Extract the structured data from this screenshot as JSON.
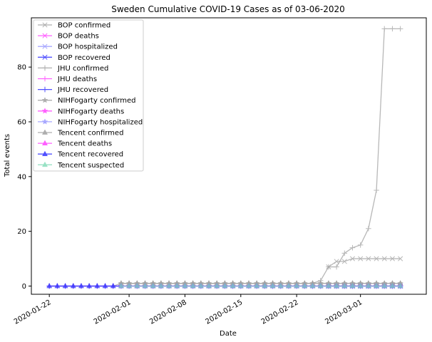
{
  "chart_data": {
    "type": "line",
    "title": "Sweden Cumulative COVID-19 Cases as of 03-06-2020",
    "xlabel": "Date",
    "ylabel": "Total events",
    "ylim": [
      -3,
      98
    ],
    "x_start": "2020-01-22",
    "num_days": 45,
    "x_tick_labels": [
      "2020-01-22",
      "2020-02-01",
      "2020-02-08",
      "2020-02-15",
      "2020-02-22",
      "2020-03-01"
    ],
    "x_tick_days": [
      0,
      10,
      17,
      24,
      31,
      39
    ],
    "y_ticks": [
      0,
      20,
      40,
      60,
      80
    ],
    "legend_position": "upper-left",
    "series": [
      {
        "name": "BOP confirmed",
        "color": "#a0a0a0",
        "marker": "x",
        "x_days": [
          35,
          36,
          37,
          38,
          39,
          40,
          41,
          42,
          43,
          44
        ],
        "values": [
          7,
          9,
          9,
          10,
          10,
          10,
          10,
          10,
          10,
          10
        ]
      },
      {
        "name": "BOP deaths",
        "color": "#ff44ff",
        "marker": "x",
        "x_days": [
          35,
          36,
          37,
          38,
          39,
          40,
          41,
          42,
          43,
          44
        ],
        "values": [
          0,
          0,
          0,
          0,
          0,
          0,
          0,
          0,
          0,
          0
        ]
      },
      {
        "name": "BOP hospitalized",
        "color": "#9999ff",
        "marker": "x",
        "x_days": [
          35,
          36,
          37,
          38,
          39,
          40,
          41,
          42,
          43,
          44
        ],
        "values": [
          0,
          0,
          0,
          0,
          0,
          0,
          0,
          0,
          0,
          0
        ]
      },
      {
        "name": "BOP recovered",
        "color": "#3333ff",
        "marker": "x",
        "x_days": [
          35,
          36,
          37,
          38,
          39,
          40,
          41,
          42,
          43,
          44
        ],
        "values": [
          0,
          0,
          0,
          0,
          0,
          0,
          0,
          0,
          0,
          0
        ]
      },
      {
        "name": "JHU confirmed",
        "color": "#a0a0a0",
        "marker": "+",
        "x_days": [
          0,
          1,
          2,
          3,
          4,
          5,
          6,
          7,
          8,
          9,
          10,
          11,
          12,
          13,
          14,
          15,
          16,
          17,
          18,
          19,
          20,
          21,
          22,
          23,
          24,
          25,
          26,
          27,
          28,
          29,
          30,
          31,
          32,
          33,
          34,
          35,
          36,
          37,
          38,
          39,
          40,
          41,
          42,
          43,
          44
        ],
        "values": [
          0,
          0,
          0,
          0,
          0,
          0,
          0,
          0,
          0,
          1,
          1,
          1,
          1,
          1,
          1,
          1,
          1,
          1,
          1,
          1,
          1,
          1,
          1,
          1,
          1,
          1,
          1,
          1,
          1,
          1,
          1,
          1,
          1,
          1,
          2,
          7,
          7,
          12,
          14,
          15,
          21,
          35,
          94,
          94,
          94
        ]
      },
      {
        "name": "JHU deaths",
        "color": "#ff44ff",
        "marker": "+",
        "x_days": [
          0,
          1,
          2,
          3,
          4,
          5,
          6,
          7,
          8,
          9,
          10,
          11,
          12,
          13,
          14,
          15,
          16,
          17,
          18,
          19,
          20,
          21,
          22,
          23,
          24,
          25,
          26,
          27,
          28,
          29,
          30,
          31,
          32,
          33,
          34,
          35,
          36,
          37,
          38,
          39,
          40,
          41,
          42,
          43,
          44
        ],
        "values": [
          0,
          0,
          0,
          0,
          0,
          0,
          0,
          0,
          0,
          0,
          0,
          0,
          0,
          0,
          0,
          0,
          0,
          0,
          0,
          0,
          0,
          0,
          0,
          0,
          0,
          0,
          0,
          0,
          0,
          0,
          0,
          0,
          0,
          0,
          0,
          0,
          0,
          0,
          0,
          0,
          0,
          0,
          0,
          0,
          0
        ]
      },
      {
        "name": "JHU recovered",
        "color": "#3333ff",
        "marker": "+",
        "x_days": [
          0,
          1,
          2,
          3,
          4,
          5,
          6,
          7,
          8,
          9,
          10,
          11,
          12,
          13,
          14,
          15,
          16,
          17,
          18,
          19,
          20,
          21,
          22,
          23,
          24,
          25,
          26,
          27,
          28,
          29,
          30,
          31,
          32,
          33,
          34,
          35,
          36,
          37,
          38,
          39,
          40,
          41,
          42,
          43,
          44
        ],
        "values": [
          0,
          0,
          0,
          0,
          0,
          0,
          0,
          0,
          0,
          0,
          0,
          0,
          0,
          0,
          0,
          0,
          0,
          0,
          0,
          0,
          0,
          0,
          0,
          0,
          0,
          0,
          0,
          0,
          0,
          0,
          0,
          0,
          0,
          0,
          0,
          0,
          0,
          0,
          0,
          0,
          0,
          0,
          0,
          0,
          0
        ]
      },
      {
        "name": "NIHFogarty confirmed",
        "color": "#a0a0a0",
        "marker": "*",
        "x_days": [
          9,
          10,
          11,
          12,
          13,
          14,
          15,
          16,
          17,
          18,
          19,
          20,
          21,
          22,
          23,
          24,
          25,
          26,
          27,
          28,
          29,
          30,
          31,
          32,
          33,
          34,
          35,
          36,
          37,
          38,
          39,
          40,
          41,
          42,
          43,
          44
        ],
        "values": [
          1,
          1,
          1,
          1,
          1,
          1,
          1,
          1,
          1,
          1,
          1,
          1,
          1,
          1,
          1,
          1,
          1,
          1,
          1,
          1,
          1,
          1,
          1,
          1,
          1,
          1,
          1,
          1,
          1,
          1,
          1,
          1,
          1,
          1,
          1,
          1
        ]
      },
      {
        "name": "NIHFogarty deaths",
        "color": "#ff44ff",
        "marker": "*",
        "x_days": [
          9,
          10,
          11,
          12,
          13,
          14,
          15,
          16,
          17,
          18,
          19,
          20,
          21,
          22,
          23,
          24,
          25,
          26,
          27,
          28,
          29,
          30,
          31,
          32,
          33,
          34,
          35,
          36,
          37,
          38,
          39,
          40,
          41,
          42,
          43,
          44
        ],
        "values": [
          0,
          0,
          0,
          0,
          0,
          0,
          0,
          0,
          0,
          0,
          0,
          0,
          0,
          0,
          0,
          0,
          0,
          0,
          0,
          0,
          0,
          0,
          0,
          0,
          0,
          0,
          0,
          0,
          0,
          0,
          0,
          0,
          0,
          0,
          0,
          0
        ]
      },
      {
        "name": "NIHFogarty hospitalized",
        "color": "#9999ff",
        "marker": "*",
        "x_days": [
          9,
          10,
          11,
          12,
          13,
          14,
          15,
          16,
          17,
          18,
          19,
          20,
          21,
          22,
          23,
          24,
          25,
          26,
          27,
          28,
          29,
          30,
          31,
          32,
          33,
          34,
          35,
          36,
          37,
          38,
          39,
          40,
          41,
          42,
          43,
          44
        ],
        "values": [
          0,
          0,
          0,
          0,
          0,
          0,
          0,
          0,
          0,
          0,
          0,
          0,
          0,
          0,
          0,
          0,
          0,
          0,
          0,
          0,
          0,
          0,
          0,
          0,
          0,
          0,
          0,
          0,
          0,
          0,
          0,
          0,
          0,
          0,
          0,
          0
        ]
      },
      {
        "name": "Tencent confirmed",
        "color": "#a0a0a0",
        "marker": "^",
        "x_days": [
          9,
          10,
          11,
          12,
          13,
          14,
          15,
          16,
          17,
          18,
          19,
          20,
          21,
          22,
          23,
          24,
          25,
          26,
          27,
          28,
          29,
          30,
          31,
          32,
          33,
          34,
          35,
          36,
          37,
          38,
          39,
          40,
          41,
          42,
          43,
          44
        ],
        "values": [
          1,
          1,
          1,
          1,
          1,
          1,
          1,
          1,
          1,
          1,
          1,
          1,
          1,
          1,
          1,
          1,
          1,
          1,
          1,
          1,
          1,
          1,
          1,
          1,
          1,
          1,
          1,
          1,
          1,
          1,
          1,
          1,
          1,
          1,
          1,
          1
        ]
      },
      {
        "name": "Tencent deaths",
        "color": "#ff44ff",
        "marker": "^",
        "x_days": [
          9,
          10,
          11,
          12,
          13,
          14,
          15,
          16,
          17,
          18,
          19,
          20,
          21,
          22,
          23,
          24,
          25,
          26,
          27,
          28,
          29,
          30,
          31,
          32,
          33,
          34,
          35,
          36,
          37,
          38,
          39,
          40,
          41,
          42,
          43,
          44
        ],
        "values": [
          0,
          0,
          0,
          0,
          0,
          0,
          0,
          0,
          0,
          0,
          0,
          0,
          0,
          0,
          0,
          0,
          0,
          0,
          0,
          0,
          0,
          0,
          0,
          0,
          0,
          0,
          0,
          0,
          0,
          0,
          0,
          0,
          0,
          0,
          0,
          0
        ]
      },
      {
        "name": "Tencent recovered",
        "color": "#3333ff",
        "marker": "^",
        "x_days": [
          0,
          1,
          2,
          3,
          4,
          5,
          6,
          7,
          8,
          9,
          10,
          11,
          12,
          13,
          14,
          15,
          16,
          17,
          18,
          19,
          20,
          21,
          22,
          23,
          24,
          25,
          26,
          27,
          28,
          29,
          30,
          31,
          32,
          33,
          34,
          35,
          36,
          37,
          38,
          39,
          40,
          41,
          42,
          43,
          44
        ],
        "values": [
          0,
          0,
          0,
          0,
          0,
          0,
          0,
          0,
          0,
          0,
          0,
          0,
          0,
          0,
          0,
          0,
          0,
          0,
          0,
          0,
          0,
          0,
          0,
          0,
          0,
          0,
          0,
          0,
          0,
          0,
          0,
          0,
          0,
          0,
          0,
          0,
          0,
          0,
          0,
          0,
          0,
          0,
          0,
          0,
          0
        ]
      },
      {
        "name": "Tencent suspected",
        "color": "#88ddbb",
        "marker": "^",
        "x_days": [
          9,
          10,
          11,
          12,
          13,
          14,
          15,
          16,
          17,
          18,
          19,
          20,
          21,
          22,
          23,
          24,
          25,
          26,
          27,
          28,
          29,
          30,
          31,
          32,
          33,
          34,
          35,
          36,
          37,
          38,
          39,
          40,
          41,
          42,
          43,
          44
        ],
        "values": [
          0,
          0,
          0,
          0,
          0,
          0,
          0,
          0,
          0,
          0,
          0,
          0,
          0,
          0,
          0,
          0,
          0,
          0,
          0,
          0,
          0,
          0,
          0,
          0,
          0,
          0,
          0,
          0,
          0,
          0,
          0,
          0,
          0,
          0,
          0,
          0
        ]
      }
    ]
  }
}
